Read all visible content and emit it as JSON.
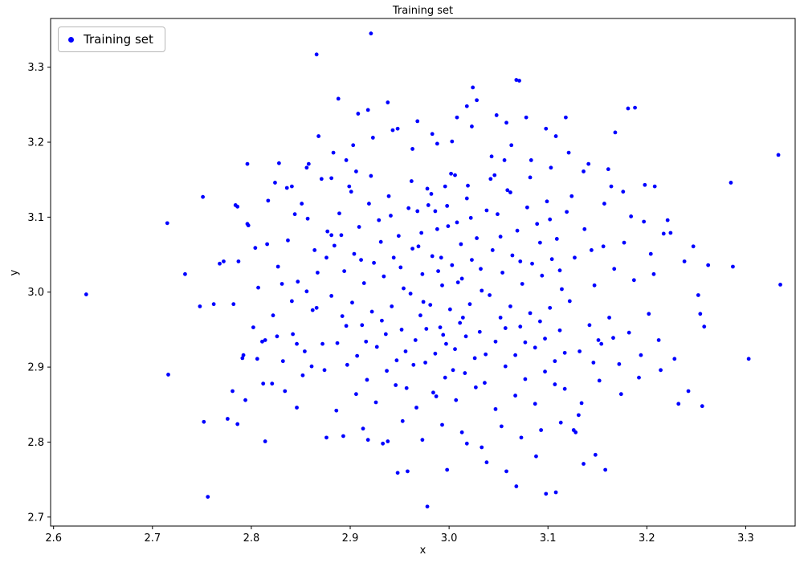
{
  "chart_data": {
    "type": "scatter",
    "title": "Training set",
    "xlabel": "x",
    "ylabel": "y",
    "legend": {
      "label": "Training set",
      "position": "upper left"
    },
    "marker_color": "#0000ff",
    "marker_size_px": 2.4,
    "grid": false,
    "xlim": [
      2.597,
      3.35
    ],
    "ylim": [
      2.688,
      3.365
    ],
    "x_ticks": [
      2.6,
      2.7,
      2.8,
      2.9,
      3.0,
      3.1,
      3.2,
      3.3
    ],
    "y_ticks": [
      2.7,
      2.8,
      2.9,
      3.0,
      3.1,
      3.2,
      3.3
    ],
    "points": [
      [
        2.881,
        2.995
      ],
      [
        2.884,
        3.062
      ],
      [
        2.887,
        2.932
      ],
      [
        2.889,
        3.105
      ],
      [
        2.892,
        2.968
      ],
      [
        2.894,
        3.028
      ],
      [
        2.897,
        2.903
      ],
      [
        2.899,
        3.141
      ],
      [
        2.902,
        2.986
      ],
      [
        2.904,
        3.051
      ],
      [
        2.907,
        2.915
      ],
      [
        2.909,
        3.087
      ],
      [
        2.912,
        2.956
      ],
      [
        2.914,
        3.012
      ],
      [
        2.917,
        2.883
      ],
      [
        2.919,
        3.118
      ],
      [
        2.922,
        2.974
      ],
      [
        2.924,
        3.039
      ],
      [
        2.927,
        2.927
      ],
      [
        2.929,
        3.096
      ],
      [
        2.932,
        2.962
      ],
      [
        2.934,
        3.021
      ],
      [
        2.937,
        2.895
      ],
      [
        2.939,
        3.128
      ],
      [
        2.942,
        2.981
      ],
      [
        2.944,
        3.046
      ],
      [
        2.947,
        2.909
      ],
      [
        2.949,
        3.075
      ],
      [
        2.952,
        2.95
      ],
      [
        2.954,
        3.005
      ],
      [
        2.957,
        2.872
      ],
      [
        2.959,
        3.112
      ],
      [
        2.881,
        3.152
      ],
      [
        2.886,
        2.842
      ],
      [
        2.891,
        3.076
      ],
      [
        2.896,
        2.955
      ],
      [
        2.901,
        3.134
      ],
      [
        2.906,
        2.864
      ],
      [
        2.911,
        3.043
      ],
      [
        2.916,
        2.934
      ],
      [
        2.921,
        3.155
      ],
      [
        2.926,
        2.853
      ],
      [
        2.931,
        3.067
      ],
      [
        2.936,
        2.944
      ],
      [
        2.941,
        3.102
      ],
      [
        2.946,
        2.876
      ],
      [
        2.951,
        3.033
      ],
      [
        2.956,
        2.921
      ],
      [
        2.961,
        2.998
      ],
      [
        2.963,
        3.058
      ],
      [
        2.966,
        2.936
      ],
      [
        2.968,
        3.108
      ],
      [
        2.971,
        2.969
      ],
      [
        2.973,
        3.024
      ],
      [
        2.976,
        2.906
      ],
      [
        2.978,
        3.138
      ],
      [
        2.981,
        2.983
      ],
      [
        2.983,
        3.048
      ],
      [
        2.986,
        2.918
      ],
      [
        2.988,
        3.084
      ],
      [
        2.991,
        2.953
      ],
      [
        2.993,
        3.009
      ],
      [
        2.996,
        2.886
      ],
      [
        2.998,
        3.115
      ],
      [
        3.001,
        2.977
      ],
      [
        3.003,
        3.036
      ],
      [
        3.006,
        2.924
      ],
      [
        3.008,
        3.093
      ],
      [
        3.011,
        2.959
      ],
      [
        3.013,
        3.018
      ],
      [
        3.016,
        2.892
      ],
      [
        3.018,
        3.125
      ],
      [
        3.021,
        2.984
      ],
      [
        3.023,
        3.043
      ],
      [
        3.026,
        2.912
      ],
      [
        3.028,
        3.072
      ],
      [
        3.031,
        2.947
      ],
      [
        3.033,
        3.002
      ],
      [
        3.036,
        2.879
      ],
      [
        3.038,
        3.109
      ],
      [
        2.962,
        3.148
      ],
      [
        2.967,
        2.846
      ],
      [
        2.972,
        3.079
      ],
      [
        2.977,
        2.951
      ],
      [
        2.982,
        3.131
      ],
      [
        2.987,
        2.861
      ],
      [
        2.992,
        3.046
      ],
      [
        2.997,
        2.931
      ],
      [
        3.002,
        3.158
      ],
      [
        3.007,
        2.856
      ],
      [
        3.012,
        3.064
      ],
      [
        3.017,
        2.941
      ],
      [
        3.022,
        3.099
      ],
      [
        3.027,
        2.873
      ],
      [
        3.032,
        3.031
      ],
      [
        3.037,
        2.917
      ],
      [
        2.964,
        2.903
      ],
      [
        2.969,
        3.061
      ],
      [
        2.974,
        2.987
      ],
      [
        2.979,
        3.116
      ],
      [
        2.984,
        2.866
      ],
      [
        2.989,
        3.028
      ],
      [
        2.994,
        2.943
      ],
      [
        2.999,
        3.088
      ],
      [
        3.004,
        2.896
      ],
      [
        3.009,
        3.013
      ],
      [
        3.014,
        2.966
      ],
      [
        3.019,
        3.142
      ],
      [
        3.041,
        2.996
      ],
      [
        3.044,
        3.056
      ],
      [
        3.047,
        2.934
      ],
      [
        3.049,
        3.104
      ],
      [
        3.052,
        2.966
      ],
      [
        3.054,
        3.026
      ],
      [
        3.057,
        2.901
      ],
      [
        3.059,
        3.136
      ],
      [
        3.062,
        2.981
      ],
      [
        3.064,
        3.049
      ],
      [
        3.067,
        2.916
      ],
      [
        3.069,
        3.082
      ],
      [
        3.072,
        2.954
      ],
      [
        3.074,
        3.011
      ],
      [
        3.077,
        2.884
      ],
      [
        3.079,
        3.113
      ],
      [
        3.082,
        2.972
      ],
      [
        3.084,
        3.038
      ],
      [
        3.087,
        2.926
      ],
      [
        3.089,
        3.091
      ],
      [
        3.092,
        2.961
      ],
      [
        3.094,
        3.022
      ],
      [
        3.097,
        2.894
      ],
      [
        3.099,
        3.121
      ],
      [
        3.102,
        2.979
      ],
      [
        3.104,
        3.044
      ],
      [
        3.107,
        2.908
      ],
      [
        3.109,
        3.071
      ],
      [
        3.112,
        2.949
      ],
      [
        3.114,
        3.004
      ],
      [
        3.117,
        2.871
      ],
      [
        3.119,
        3.107
      ],
      [
        3.042,
        3.151
      ],
      [
        3.047,
        2.844
      ],
      [
        3.052,
        3.074
      ],
      [
        3.057,
        2.952
      ],
      [
        3.062,
        3.133
      ],
      [
        3.067,
        2.862
      ],
      [
        3.072,
        3.041
      ],
      [
        3.077,
        2.933
      ],
      [
        3.082,
        3.153
      ],
      [
        3.087,
        2.851
      ],
      [
        3.092,
        3.066
      ],
      [
        3.097,
        2.938
      ],
      [
        3.102,
        3.097
      ],
      [
        3.107,
        2.877
      ],
      [
        3.112,
        3.029
      ],
      [
        3.117,
        2.919
      ],
      [
        2.883,
        3.186
      ],
      [
        2.893,
        2.808
      ],
      [
        2.903,
        3.196
      ],
      [
        2.913,
        2.818
      ],
      [
        2.923,
        3.206
      ],
      [
        2.933,
        2.798
      ],
      [
        2.943,
        3.216
      ],
      [
        2.953,
        2.828
      ],
      [
        2.963,
        3.191
      ],
      [
        2.973,
        2.803
      ],
      [
        2.983,
        3.211
      ],
      [
        2.993,
        2.823
      ],
      [
        3.003,
        3.201
      ],
      [
        3.013,
        2.813
      ],
      [
        3.023,
        3.221
      ],
      [
        3.033,
        2.793
      ],
      [
        3.043,
        3.181
      ],
      [
        3.053,
        2.821
      ],
      [
        3.063,
        3.196
      ],
      [
        3.073,
        2.806
      ],
      [
        3.083,
        3.176
      ],
      [
        3.093,
        2.816
      ],
      [
        3.103,
        3.166
      ],
      [
        3.113,
        2.826
      ],
      [
        2.782,
        2.984
      ],
      [
        2.787,
        3.041
      ],
      [
        2.792,
        2.916
      ],
      [
        2.797,
        3.089
      ],
      [
        2.802,
        2.953
      ],
      [
        2.807,
        3.006
      ],
      [
        2.812,
        2.878
      ],
      [
        2.817,
        3.122
      ],
      [
        2.822,
        2.969
      ],
      [
        2.827,
        3.034
      ],
      [
        2.832,
        2.908
      ],
      [
        2.837,
        3.069
      ],
      [
        2.842,
        2.944
      ],
      [
        2.847,
        3.014
      ],
      [
        2.852,
        2.889
      ],
      [
        2.857,
        3.098
      ],
      [
        2.862,
        2.976
      ],
      [
        2.867,
        3.026
      ],
      [
        2.872,
        2.931
      ],
      [
        2.877,
        3.081
      ],
      [
        2.784,
        3.116
      ],
      [
        2.794,
        2.856
      ],
      [
        2.804,
        3.059
      ],
      [
        2.814,
        2.936
      ],
      [
        2.824,
        3.146
      ],
      [
        2.834,
        2.868
      ],
      [
        2.844,
        3.104
      ],
      [
        2.854,
        2.921
      ],
      [
        2.864,
        3.056
      ],
      [
        2.874,
        2.896
      ],
      [
        2.786,
        2.824
      ],
      [
        2.796,
        3.171
      ],
      [
        2.806,
        2.911
      ],
      [
        2.816,
        3.064
      ],
      [
        2.826,
        2.941
      ],
      [
        2.836,
        3.139
      ],
      [
        2.846,
        2.846
      ],
      [
        2.856,
        3.166
      ],
      [
        2.866,
        2.979
      ],
      [
        2.876,
        3.046
      ],
      [
        3.122,
        2.988
      ],
      [
        3.127,
        3.046
      ],
      [
        3.132,
        2.921
      ],
      [
        3.137,
        3.084
      ],
      [
        3.142,
        2.956
      ],
      [
        3.147,
        3.009
      ],
      [
        3.152,
        2.882
      ],
      [
        3.157,
        3.118
      ],
      [
        3.162,
        2.966
      ],
      [
        3.167,
        3.031
      ],
      [
        3.172,
        2.904
      ],
      [
        3.177,
        3.066
      ],
      [
        3.182,
        2.946
      ],
      [
        3.187,
        3.016
      ],
      [
        3.192,
        2.886
      ],
      [
        3.197,
        3.094
      ],
      [
        3.202,
        2.971
      ],
      [
        3.207,
        3.024
      ],
      [
        3.212,
        2.936
      ],
      [
        3.217,
        3.078
      ],
      [
        3.124,
        3.128
      ],
      [
        3.134,
        2.852
      ],
      [
        3.144,
        3.056
      ],
      [
        3.154,
        2.931
      ],
      [
        3.164,
        3.141
      ],
      [
        3.174,
        2.864
      ],
      [
        3.184,
        3.101
      ],
      [
        3.194,
        2.916
      ],
      [
        3.204,
        3.051
      ],
      [
        3.214,
        2.896
      ],
      [
        3.126,
        2.816
      ],
      [
        3.136,
        3.161
      ],
      [
        3.146,
        2.906
      ],
      [
        3.156,
        3.061
      ],
      [
        3.166,
        2.939
      ],
      [
        3.176,
        3.134
      ],
      [
        2.868,
        3.208
      ],
      [
        2.888,
        3.258
      ],
      [
        2.908,
        3.238
      ],
      [
        2.918,
        3.243
      ],
      [
        2.938,
        3.253
      ],
      [
        2.948,
        3.218
      ],
      [
        2.968,
        3.228
      ],
      [
        2.988,
        3.198
      ],
      [
        3.008,
        3.233
      ],
      [
        3.018,
        3.248
      ],
      [
        3.028,
        3.256
      ],
      [
        3.048,
        3.236
      ],
      [
        3.058,
        3.226
      ],
      [
        3.068,
        3.283
      ],
      [
        3.078,
        3.233
      ],
      [
        3.098,
        3.218
      ],
      [
        3.108,
        3.208
      ],
      [
        3.118,
        3.233
      ],
      [
        2.858,
        3.171
      ],
      [
        2.828,
        3.172
      ],
      [
        3.168,
        3.213
      ],
      [
        3.188,
        3.246
      ],
      [
        3.198,
        3.143
      ],
      [
        3.208,
        3.141
      ],
      [
        2.918,
        2.803
      ],
      [
        2.938,
        2.801
      ],
      [
        2.958,
        2.761
      ],
      [
        2.978,
        2.714
      ],
      [
        2.998,
        2.763
      ],
      [
        3.018,
        2.798
      ],
      [
        3.038,
        2.773
      ],
      [
        3.058,
        2.761
      ],
      [
        3.068,
        2.741
      ],
      [
        3.088,
        2.781
      ],
      [
        3.098,
        2.731
      ],
      [
        3.108,
        2.733
      ],
      [
        2.948,
        2.759
      ],
      [
        3.128,
        2.813
      ],
      [
        3.148,
        2.783
      ],
      [
        3.158,
        2.763
      ],
      [
        2.633,
        2.997
      ],
      [
        2.715,
        3.092
      ],
      [
        2.716,
        2.89
      ],
      [
        2.733,
        3.024
      ],
      [
        2.748,
        2.981
      ],
      [
        2.751,
        3.127
      ],
      [
        2.752,
        2.827
      ],
      [
        2.756,
        2.727
      ],
      [
        2.762,
        2.984
      ],
      [
        2.768,
        3.038
      ],
      [
        2.772,
        3.041
      ],
      [
        2.776,
        2.831
      ],
      [
        2.781,
        2.868
      ],
      [
        2.786,
        3.114
      ],
      [
        2.791,
        2.912
      ],
      [
        2.796,
        3.091
      ],
      [
        2.814,
        2.801
      ],
      [
        2.821,
        2.878
      ],
      [
        3.224,
        3.079
      ],
      [
        3.228,
        2.911
      ],
      [
        3.232,
        2.851
      ],
      [
        3.238,
        3.041
      ],
      [
        3.242,
        2.868
      ],
      [
        3.247,
        3.061
      ],
      [
        3.252,
        2.996
      ],
      [
        3.254,
        2.971
      ],
      [
        3.256,
        2.848
      ],
      [
        3.258,
        2.954
      ],
      [
        3.262,
        3.036
      ],
      [
        3.285,
        3.146
      ],
      [
        3.287,
        3.034
      ],
      [
        3.303,
        2.911
      ],
      [
        3.333,
        3.183
      ],
      [
        3.335,
        3.01
      ],
      [
        2.921,
        3.345
      ],
      [
        2.866,
        3.317
      ],
      [
        3.024,
        3.273
      ],
      [
        3.071,
        3.282
      ],
      [
        3.181,
        3.245
      ],
      [
        3.221,
        3.096
      ],
      [
        2.841,
        2.988
      ],
      [
        2.851,
        3.118
      ],
      [
        2.861,
        2.901
      ],
      [
        2.871,
        3.151
      ],
      [
        2.881,
        3.076
      ],
      [
        2.846,
        2.931
      ],
      [
        2.856,
        3.001
      ],
      [
        2.876,
        2.806
      ],
      [
        3.121,
        3.186
      ],
      [
        3.131,
        2.836
      ],
      [
        3.141,
        3.171
      ],
      [
        3.151,
        2.936
      ],
      [
        3.161,
        3.164
      ],
      [
        3.136,
        2.771
      ],
      [
        2.831,
        3.011
      ],
      [
        2.811,
        2.934
      ],
      [
        2.841,
        3.141
      ],
      [
        2.896,
        3.176
      ],
      [
        2.906,
        3.161
      ],
      [
        3.046,
        3.156
      ],
      [
        3.056,
        3.176
      ],
      [
        2.996,
        3.141
      ],
      [
        3.006,
        3.156
      ],
      [
        2.986,
        3.108
      ]
    ]
  }
}
